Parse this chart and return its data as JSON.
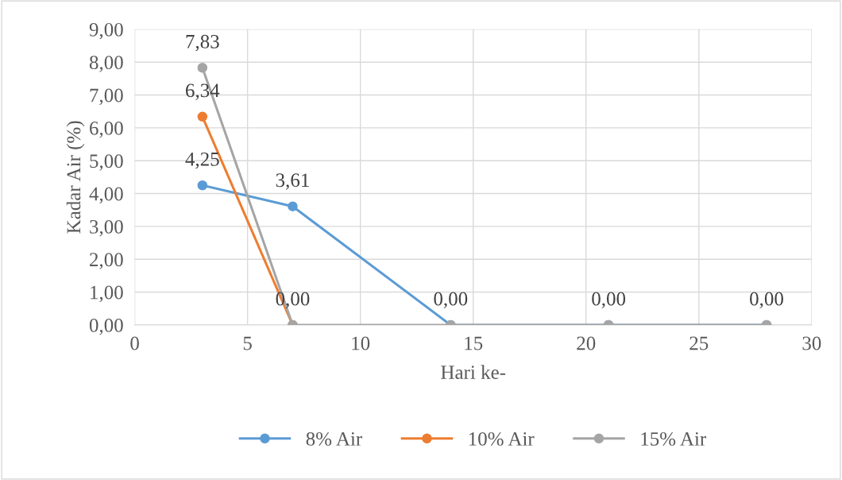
{
  "chart_data": {
    "type": "line",
    "xlabel": "Hari ke-",
    "ylabel": "Kadar Air (%)",
    "x": [
      3,
      7,
      14,
      21,
      28
    ],
    "series": [
      {
        "name": "8% Air",
        "color": "#5b9bd5",
        "values": [
          4.25,
          3.61,
          0,
          0,
          0
        ],
        "value_labels": [
          "4,25",
          "3,61",
          "0,00",
          "0,00",
          "0,00"
        ]
      },
      {
        "name": "10% Air",
        "color": "#ed7d31",
        "values": [
          6.34,
          0,
          null,
          null,
          null
        ],
        "value_labels": [
          "6,34",
          null,
          null,
          null,
          null
        ]
      },
      {
        "name": "15% Air",
        "color": "#a5a5a5",
        "values": [
          7.83,
          0,
          0,
          0,
          0
        ],
        "value_labels": [
          "7,83",
          "0,00",
          null,
          null,
          null
        ]
      }
    ],
    "xlim": [
      0,
      30
    ],
    "xticks": [
      0,
      5,
      10,
      15,
      20,
      25,
      30
    ],
    "ylim": [
      0,
      9
    ],
    "yticks": [
      {
        "value": 0,
        "label": "0,00"
      },
      {
        "value": 1,
        "label": "1,00"
      },
      {
        "value": 2,
        "label": "2,00"
      },
      {
        "value": 3,
        "label": "3,00"
      },
      {
        "value": 4,
        "label": "4,00"
      },
      {
        "value": 5,
        "label": "5,00"
      },
      {
        "value": 6,
        "label": "6,00"
      },
      {
        "value": 7,
        "label": "7,00"
      },
      {
        "value": 8,
        "label": "8,00"
      },
      {
        "value": 9,
        "label": "9,00"
      }
    ],
    "grid": true,
    "legend": "bottom",
    "marker": "circle",
    "line_style": "solid"
  }
}
